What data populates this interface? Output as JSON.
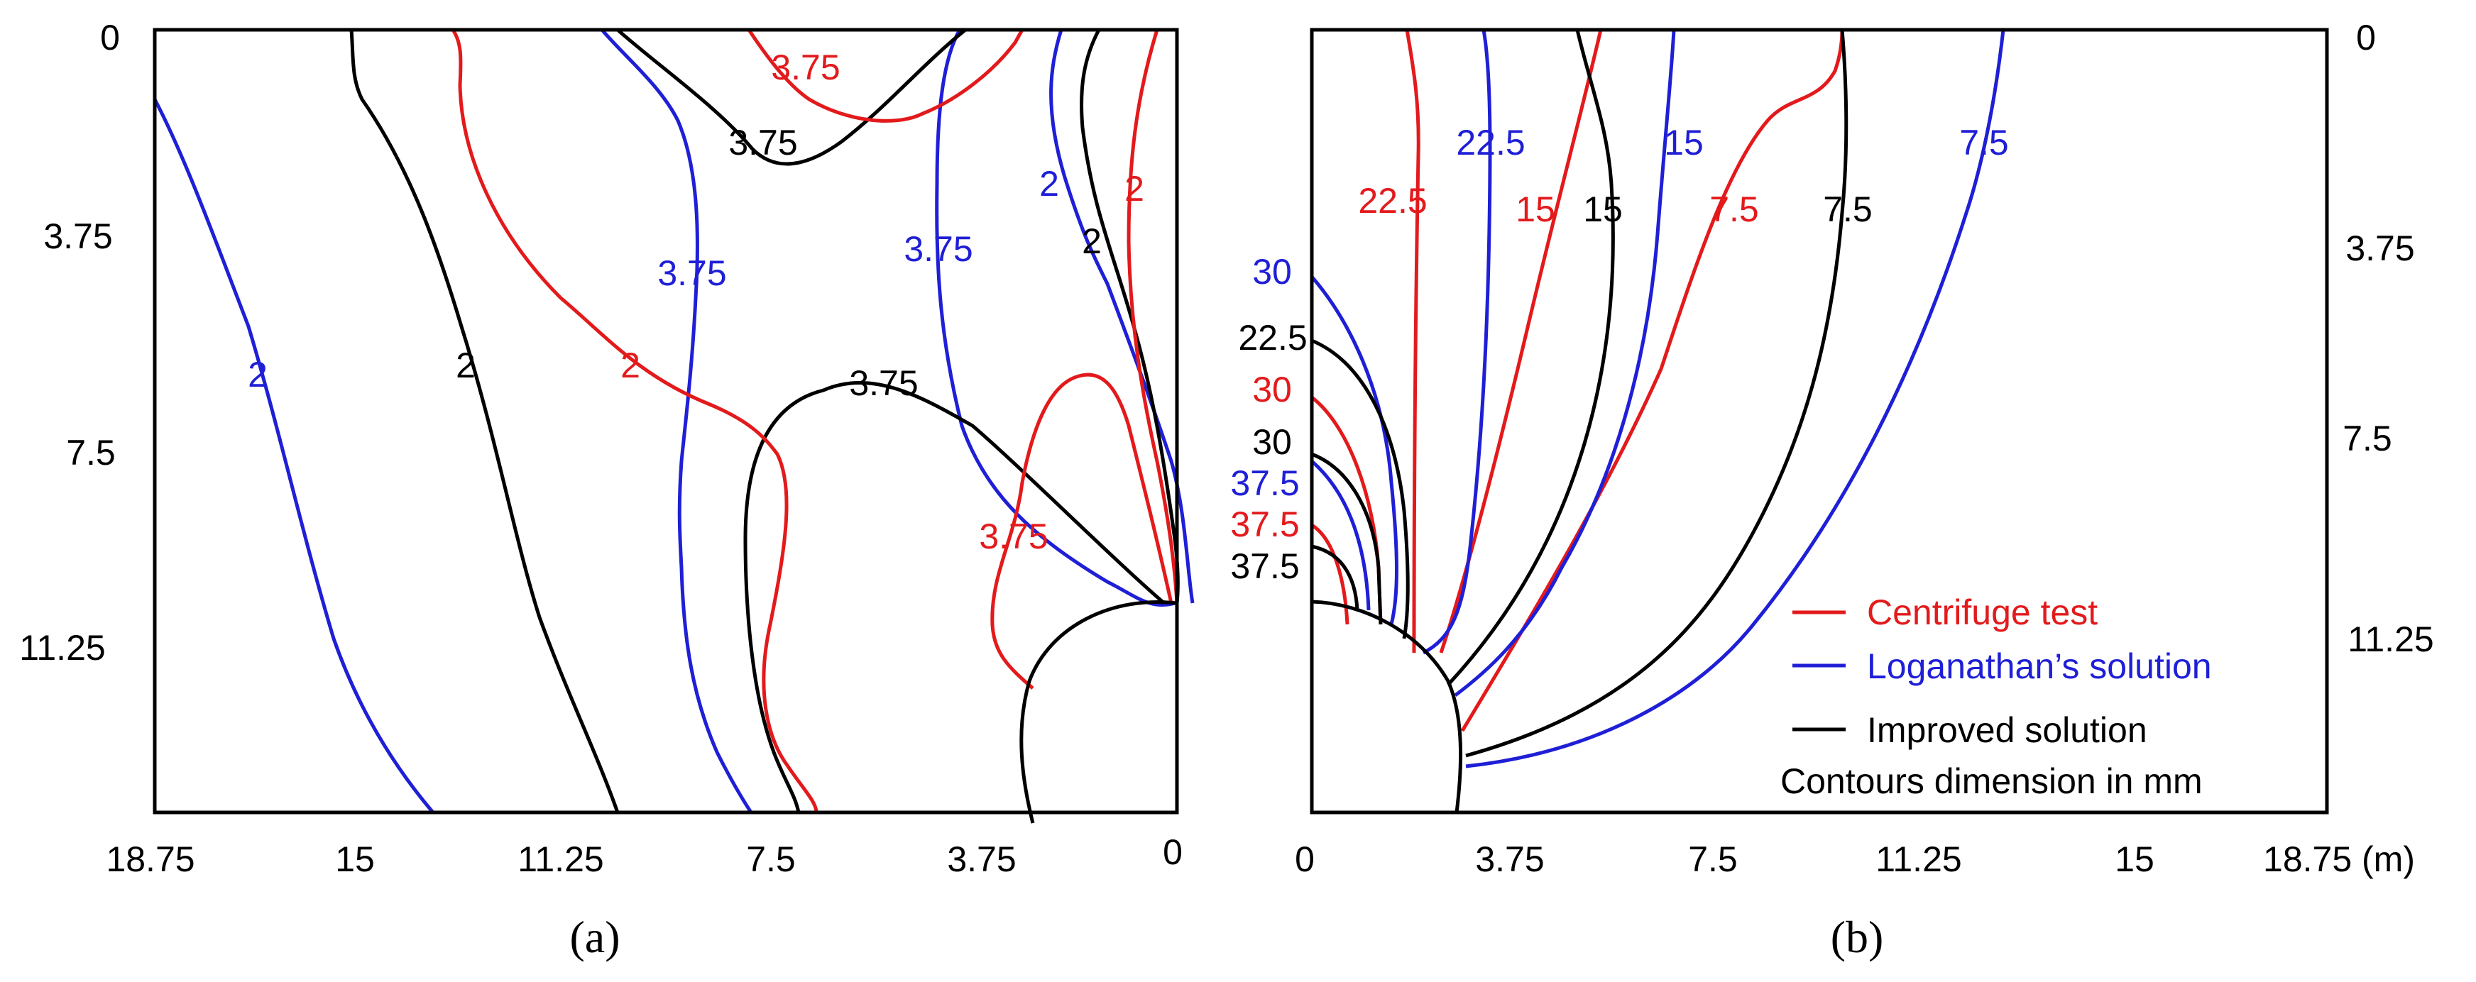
{
  "figure": {
    "panels": [
      {
        "id": "a",
        "label": "(a)"
      },
      {
        "id": "b",
        "label": "(b)"
      }
    ],
    "legend": {
      "items": [
        {
          "label": "Centrifuge test",
          "color": "#e31a1c"
        },
        {
          "label": "Loganathan’s solution",
          "color": "#1f1fd6"
        },
        {
          "label": "Improved solution",
          "color": "#000000"
        }
      ],
      "note": "Contours dimension in mm"
    },
    "colors": {
      "centrifuge": "#e31a1c",
      "loganathan": "#1f1fd6",
      "improved": "#000000"
    }
  },
  "chart_data": [
    {
      "type": "contour",
      "panel": "a",
      "x_tick_labels": [
        "18.75",
        "15",
        "11.25",
        "7.5",
        "3.75",
        "0"
      ],
      "y_tick_labels": [
        "0",
        "3.75",
        "7.5",
        "11.25"
      ],
      "x_range": [
        18.75,
        0
      ],
      "y_range": [
        0,
        14.4
      ],
      "y_inverted": true,
      "series": [
        {
          "name": "Centrifuge test",
          "color": "#e31a1c",
          "contour_labels": [
            "3.75",
            "2",
            "3.75",
            "2"
          ]
        },
        {
          "name": "Loganathan’s solution",
          "color": "#1f1fd6",
          "contour_labels": [
            "2",
            "3.75",
            "3.75",
            "2"
          ]
        },
        {
          "name": "Improved solution",
          "color": "#000000",
          "contour_labels": [
            "2",
            "3.75",
            "3.75",
            "2"
          ]
        }
      ]
    },
    {
      "type": "contour",
      "panel": "b",
      "x_tick_labels": [
        "0",
        "3.75",
        "7.5",
        "11.25",
        "15",
        "18.75 (m)"
      ],
      "y_tick_labels": [
        "0",
        "3.75",
        "7.5",
        "11.25"
      ],
      "x_range": [
        0,
        18.75
      ],
      "y_range": [
        0,
        14.4
      ],
      "y_inverted": true,
      "series": [
        {
          "name": "Centrifuge test",
          "color": "#e31a1c",
          "contour_labels": [
            "22.5",
            "15",
            "7.5",
            "30",
            "37.5"
          ]
        },
        {
          "name": "Loganathan’s solution",
          "color": "#1f1fd6",
          "contour_labels": [
            "22.5",
            "15",
            "7.5",
            "30",
            "37.5"
          ]
        },
        {
          "name": "Improved solution",
          "color": "#000000",
          "contour_labels": [
            "15",
            "7.5",
            "22.5",
            "30",
            "37.5"
          ]
        }
      ]
    }
  ]
}
